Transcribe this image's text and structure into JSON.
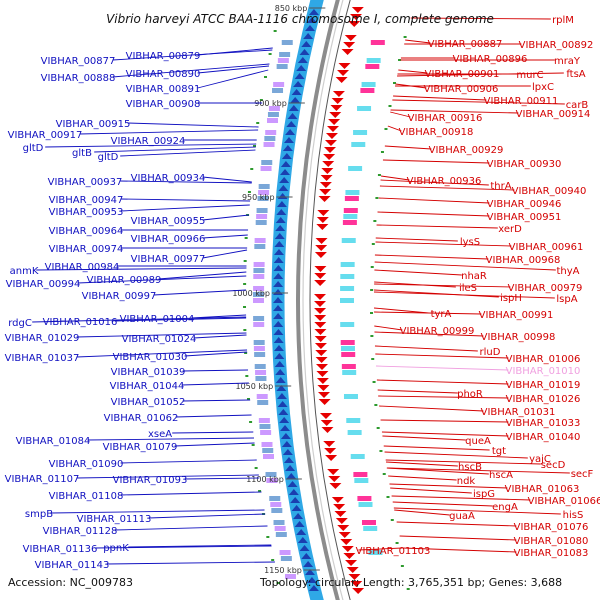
{
  "title": "Vibrio harveyi ATCC BAA-1116 chromosome I, complete genome",
  "accession": "Accession: NC_009783",
  "summary": "Topology: circular; Length: 3,765,351 bp; Genes: 3,688",
  "colors": {
    "left_label": "#1010c0",
    "right_label": "#d40000",
    "faded_label": "#f0a0e0",
    "strand_blue": "#2fa8e6",
    "strand_dark": "#1a3fb0",
    "backbone": "#8c8c8c",
    "arrow_red": "#e60000",
    "tick_green": "#2e9a2e"
  },
  "ticks": [
    "850 kbp",
    "900 kbp",
    "950 kbp",
    "1000 kbp",
    "1050 kbp",
    "1100 kbp",
    "1150 kbp"
  ],
  "left_labels": [
    "VIBHAR_00877",
    "VIBHAR_00879",
    "VIBHAR_00888",
    "VIBHAR_00890",
    "VIBHAR_00891",
    "VIBHAR_00908",
    "VIBHAR_00915",
    "VIBHAR_00917",
    "VIBHAR_00924",
    "gltD",
    "gltB",
    "gltD",
    "VIBHAR_00937",
    "VIBHAR_00934",
    "VIBHAR_00947",
    "VIBHAR_00953",
    "VIBHAR_00955",
    "VIBHAR_00964",
    "VIBHAR_00966",
    "VIBHAR_00974",
    "VIBHAR_00977",
    "anmK",
    "VIBHAR_00984",
    "VIBHAR_00994",
    "VIBHAR_00989",
    "VIBHAR_00997",
    "rdgC",
    "VIBHAR_01016",
    "VIBHAR_01004",
    "VIBHAR_01029",
    "VIBHAR_01024",
    "VIBHAR_01037",
    "VIBHAR_01030",
    "VIBHAR_01039",
    "VIBHAR_01044",
    "VIBHAR_01052",
    "VIBHAR_01062",
    "xseA",
    "VIBHAR_01084",
    "VIBHAR_01079",
    "VIBHAR_01090",
    "VIBHAR_01107",
    "VIBHAR_01093",
    "VIBHAR_01108",
    "smpB",
    "VIBHAR_01113",
    "VIBHAR_01128",
    "ppnK",
    "VIBHAR_01136",
    "VIBHAR_01143"
  ],
  "right_labels": [
    "rplM",
    "VIBHAR_00887",
    "VIBHAR_00892",
    "VIBHAR_00896",
    "mraY",
    "VIBHAR_00901",
    "murC",
    "ftsA",
    "VIBHAR_00906",
    "lpxC",
    "VIBHAR_00911",
    "carB",
    "VIBHAR_00916",
    "VIBHAR_00914",
    "VIBHAR_00918",
    "VIBHAR_00929",
    "VIBHAR_00930",
    "VIBHAR_00936",
    "thrA",
    "VIBHAR_00940",
    "VIBHAR_00946",
    "VIBHAR_00951",
    "xerD",
    "lysS",
    "VIBHAR_00961",
    "VIBHAR_00968",
    "thyA",
    "nhaR",
    "ileS",
    "VIBHAR_00979",
    "ispH",
    "lspA",
    "tyrA",
    "VIBHAR_00991",
    "VIBHAR_00999",
    "VIBHAR_00998",
    "rluD",
    "VIBHAR_01006",
    "VIBHAR_01010",
    "VIBHAR_01019",
    "phoR",
    "VIBHAR_01026",
    "VIBHAR_01031",
    "VIBHAR_01033",
    "queA",
    "VIBHAR_01040",
    "tgt",
    "yajC",
    "secD",
    "hscB",
    "hscA",
    "secF",
    "ndk",
    "VIBHAR_01063",
    "ispG",
    "VIBHAR_01066",
    "engA",
    "guaA",
    "hisS",
    "VIBHAR_01076",
    "VIBHAR_01080",
    "VIBHAR_01083",
    "VIBHAR_01103"
  ]
}
